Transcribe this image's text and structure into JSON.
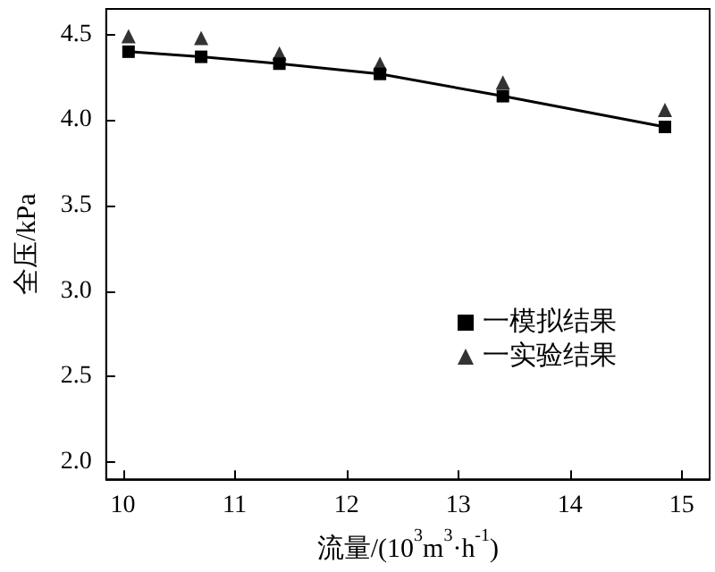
{
  "chart_data": {
    "type": "line",
    "xlabel": "流量/(10$^{3}$m$^{3}$·h$^{-1}$)",
    "ylabel": "全压/kPa",
    "x": [
      10.05,
      10.7,
      11.4,
      12.3,
      13.4,
      14.85
    ],
    "series": [
      {
        "name": "一模拟结果",
        "color": "#000000",
        "marker": "square",
        "values": [
          4.4,
          4.37,
          4.33,
          4.27,
          4.14,
          3.96
        ]
      },
      {
        "name": "一实验结果",
        "color": "#000000",
        "type": "scatter",
        "marker": "triangle",
        "values": [
          4.49,
          4.48,
          4.39,
          4.33,
          4.22,
          4.06
        ]
      }
    ],
    "xlim": [
      9.85,
      15.25
    ],
    "xticks": [
      10,
      11,
      12,
      13,
      14,
      15
    ],
    "ylim": [
      1.9,
      4.65
    ],
    "yticks": [
      {
        "value": 2,
        "label": "2.0"
      },
      2.5,
      {
        "value": 3,
        "label": "3.0"
      },
      3.5,
      {
        "value": 4,
        "label": "4.0"
      },
      4.5
    ],
    "grid": false,
    "legend": "right",
    "line_style": "solid"
  }
}
